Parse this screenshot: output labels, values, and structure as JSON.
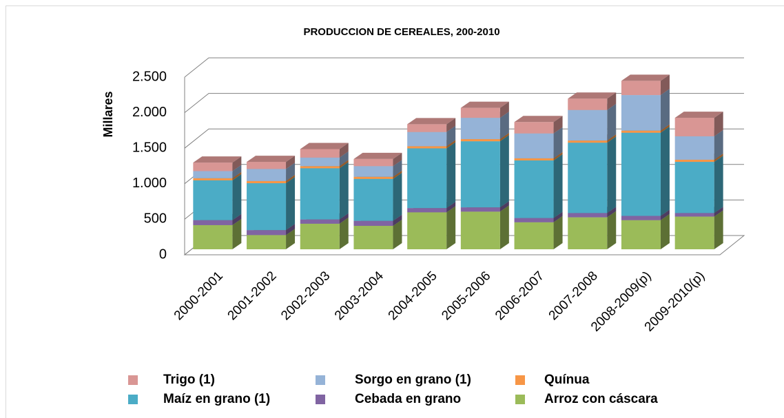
{
  "chart_data": {
    "type": "bar3d-stacked",
    "title": "PRODUCCION DE CEREALES, 200-2010",
    "y_label": "Millares",
    "categories": [
      "2000-2001",
      "2001-2002",
      "2002-2003",
      "2003-2004",
      "2004-2005",
      "2005-2006",
      "2006-2007",
      "2007-2008",
      "2008-2009(p)",
      "2009-2010(p)"
    ],
    "series": [
      {
        "name": "Arroz con cáscara",
        "color": "#9bbb59",
        "values": [
          340,
          200,
          360,
          330,
          520,
          530,
          380,
          450,
          410,
          460
        ]
      },
      {
        "name": "Cebada en grano",
        "color": "#8064a2",
        "values": [
          70,
          70,
          60,
          70,
          60,
          60,
          60,
          60,
          60,
          50
        ]
      },
      {
        "name": "Maíz en grano (1)",
        "color": "#4bacc6",
        "values": [
          560,
          660,
          720,
          590,
          840,
          930,
          810,
          990,
          1170,
          720
        ]
      },
      {
        "name": "Quínua",
        "color": "#f79646",
        "values": [
          30,
          30,
          30,
          30,
          30,
          30,
          30,
          30,
          30,
          30
        ]
      },
      {
        "name": "Sorgo en grano (1)",
        "color": "#95b3d7",
        "values": [
          100,
          170,
          120,
          150,
          200,
          300,
          350,
          430,
          500,
          330
        ]
      },
      {
        "name": "Trigo (1)",
        "color": "#d99694",
        "values": [
          120,
          100,
          120,
          100,
          110,
          140,
          160,
          160,
          200,
          260
        ]
      }
    ],
    "ylim": [
      0,
      2500
    ],
    "yticks": [
      {
        "value": 0,
        "label": "0"
      },
      {
        "value": 500,
        "label": "500"
      },
      {
        "value": 1000,
        "label": "1.000"
      },
      {
        "value": 1500,
        "label": "1.500"
      },
      {
        "value": 2000,
        "label": "2.000"
      },
      {
        "value": 2500,
        "label": "2.500"
      }
    ],
    "grid": true
  }
}
